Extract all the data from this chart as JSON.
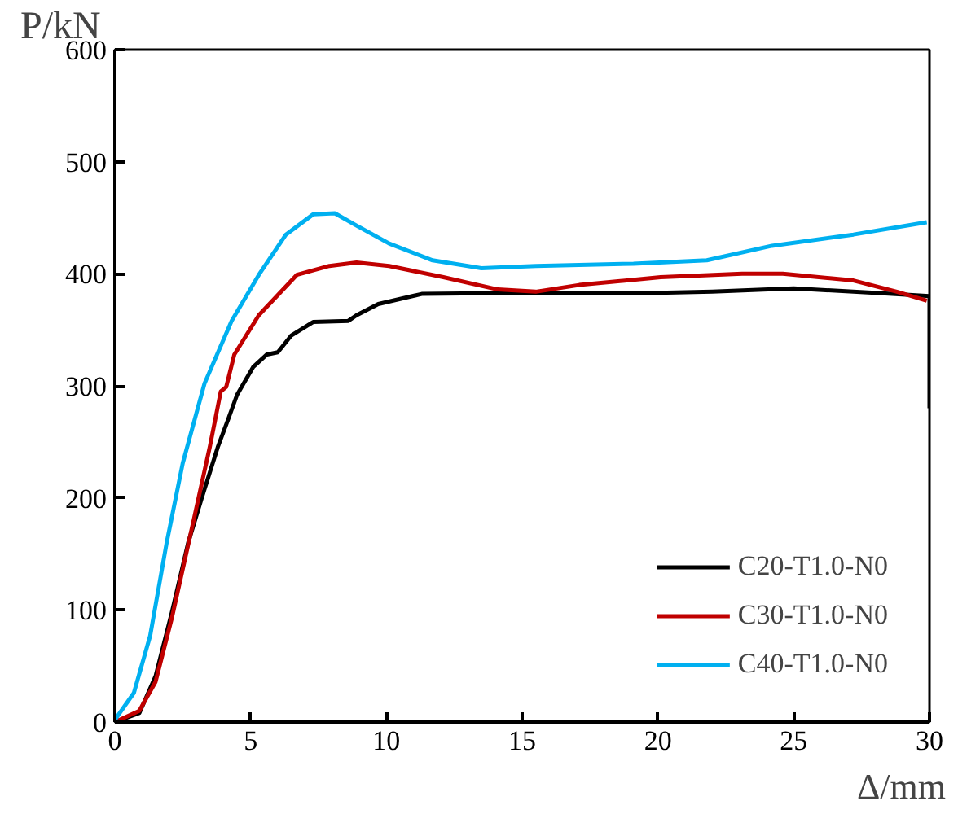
{
  "chart_data": {
    "type": "line",
    "xlabel": "Δ/mm",
    "ylabel": "P/kN",
    "xlim": [
      0,
      30
    ],
    "ylim": [
      0,
      600
    ],
    "xticks": [
      0,
      5,
      10,
      15,
      20,
      25,
      30
    ],
    "yticks": [
      0,
      100,
      200,
      300,
      400,
      500,
      600
    ],
    "grid": false,
    "legend": "bottom right",
    "line_style": "solid",
    "marker": "none",
    "series": [
      {
        "name": "C20-T1.0-N0",
        "color": "#000000",
        "x": [
          0,
          0.9,
          1.5,
          2.1,
          2.7,
          3.2,
          3.8,
          4.2,
          4.5,
          5.1,
          5.6,
          6.0,
          6.5,
          7.3,
          8.6,
          8.9,
          9.7,
          11.3,
          15,
          20,
          22,
          25,
          28,
          30,
          30
        ],
        "values": [
          0,
          8,
          41,
          98,
          160,
          200,
          246,
          272,
          292,
          317,
          328,
          330,
          345,
          357,
          358,
          363,
          373,
          382,
          383,
          383,
          384,
          387,
          383,
          380,
          280
        ]
      },
      {
        "name": "C30-T1.0-N0",
        "color": "#c00000",
        "x": [
          0,
          0.9,
          1.5,
          2.1,
          2.9,
          3.5,
          3.9,
          4.1,
          4.4,
          5.3,
          6.7,
          7.9,
          8.9,
          10.1,
          12.1,
          14.1,
          15.5,
          17.1,
          20.1,
          23.1,
          24.6,
          27.2,
          28.8,
          29.9
        ],
        "values": [
          0,
          10,
          36,
          93,
          180,
          246,
          295,
          299,
          328,
          363,
          399,
          407,
          410,
          407,
          397,
          386,
          384,
          390,
          397,
          400,
          400,
          394,
          384,
          376
        ]
      },
      {
        "name": "C40-T1.0-N0",
        "color": "#00b0f0",
        "x": [
          0,
          0.7,
          1.3,
          1.9,
          2.5,
          3.3,
          4.3,
          5.3,
          6.3,
          7.3,
          8.1,
          8.9,
          10.1,
          11.7,
          13.5,
          15.5,
          19.1,
          21.8,
          24.2,
          27.2,
          29.9
        ],
        "values": [
          2,
          26,
          77,
          159,
          231,
          302,
          358,
          399,
          435,
          453,
          454,
          443,
          427,
          412,
          405,
          407,
          409,
          412,
          425,
          435,
          446
        ]
      }
    ]
  }
}
